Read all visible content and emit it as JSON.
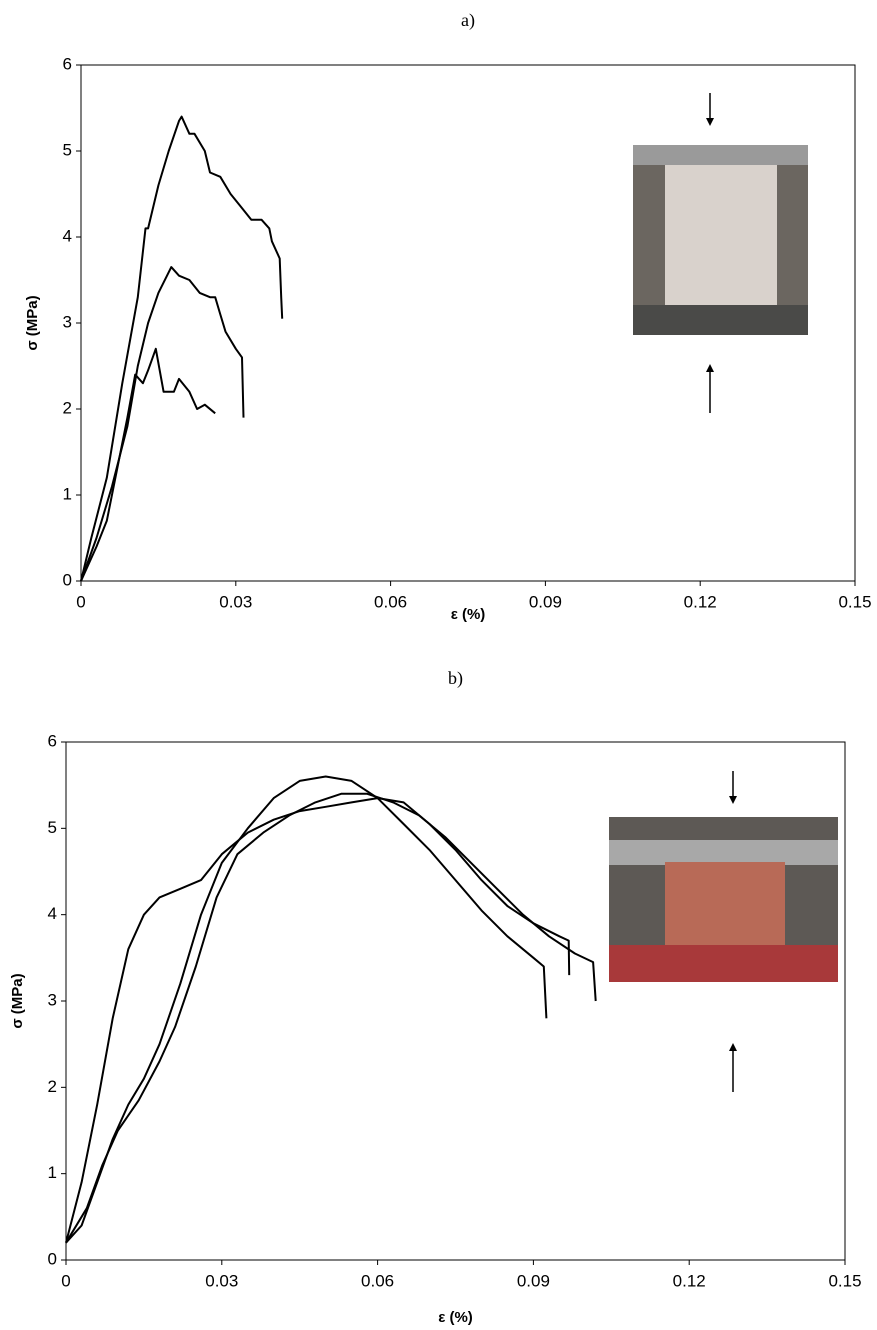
{
  "chart_data": [
    {
      "type": "line",
      "title": "a)",
      "xlabel": "ε (%)",
      "ylabel": "σ (MPa)",
      "xlim": [
        0,
        0.15
      ],
      "ylim": [
        0,
        6
      ],
      "xticks": [
        0,
        0.03,
        0.06,
        0.09,
        0.12,
        0.15
      ],
      "yticks": [
        0,
        1,
        2,
        3,
        4,
        5,
        6
      ],
      "grid": false,
      "series": [
        {
          "color": "#000000",
          "x": [
            0,
            0.002,
            0.005,
            0.008,
            0.011,
            0.0125,
            0.013,
            0.015,
            0.017,
            0.019,
            0.0195,
            0.021,
            0.022,
            0.024,
            0.025,
            0.027,
            0.029,
            0.031,
            0.033,
            0.035,
            0.0365,
            0.037,
            0.0385,
            0.0388,
            0.039
          ],
          "values": [
            0,
            0.5,
            1.2,
            2.3,
            3.3,
            4.1,
            4.1,
            4.6,
            5.0,
            5.35,
            5.4,
            5.2,
            5.2,
            5.0,
            4.75,
            4.7,
            4.5,
            4.35,
            4.2,
            4.2,
            4.1,
            3.95,
            3.75,
            3.3,
            3.05
          ]
        },
        {
          "color": "#000000",
          "x": [
            0,
            0.003,
            0.006,
            0.009,
            0.011,
            0.013,
            0.015,
            0.0175,
            0.019,
            0.021,
            0.023,
            0.025,
            0.026,
            0.027,
            0.028,
            0.03,
            0.0312,
            0.0315
          ],
          "values": [
            0,
            0.5,
            1.1,
            1.8,
            2.5,
            3.0,
            3.35,
            3.65,
            3.55,
            3.5,
            3.35,
            3.3,
            3.3,
            3.1,
            2.9,
            2.7,
            2.6,
            1.9
          ]
        },
        {
          "color": "#000000",
          "x": [
            0,
            0.003,
            0.005,
            0.007,
            0.009,
            0.0105,
            0.012,
            0.013,
            0.0145,
            0.016,
            0.018,
            0.019,
            0.021,
            0.0225,
            0.024,
            0.026
          ],
          "values": [
            0,
            0.4,
            0.7,
            1.3,
            1.9,
            2.4,
            2.3,
            2.45,
            2.7,
            2.2,
            2.2,
            2.35,
            2.2,
            2.0,
            2.05,
            1.95
          ]
        }
      ]
    },
    {
      "type": "line",
      "title": "b)",
      "xlabel": "ε (%)",
      "ylabel": "σ (MPa)",
      "xlim": [
        0,
        0.15
      ],
      "ylim": [
        0,
        6
      ],
      "xticks": [
        0,
        0.03,
        0.06,
        0.09,
        0.12,
        0.15
      ],
      "yticks": [
        0,
        1,
        2,
        3,
        4,
        5,
        6
      ],
      "grid": false,
      "series": [
        {
          "color": "#000000",
          "x": [
            0,
            0.003,
            0.006,
            0.009,
            0.012,
            0.015,
            0.018,
            0.022,
            0.026,
            0.03,
            0.035,
            0.04,
            0.045,
            0.05,
            0.055,
            0.06,
            0.065,
            0.07,
            0.075,
            0.08,
            0.085,
            0.09,
            0.095,
            0.0968,
            0.0969
          ],
          "values": [
            0.2,
            0.9,
            1.8,
            2.8,
            3.6,
            4.0,
            4.2,
            4.3,
            4.4,
            4.7,
            4.95,
            5.1,
            5.2,
            5.25,
            5.3,
            5.35,
            5.3,
            5.05,
            4.75,
            4.4,
            4.1,
            3.9,
            3.75,
            3.7,
            3.3
          ]
        },
        {
          "color": "#000000",
          "x": [
            0,
            0.003,
            0.006,
            0.009,
            0.012,
            0.015,
            0.018,
            0.022,
            0.026,
            0.03,
            0.035,
            0.04,
            0.045,
            0.05,
            0.055,
            0.06,
            0.065,
            0.07,
            0.075,
            0.08,
            0.085,
            0.09,
            0.092,
            0.0925
          ],
          "values": [
            0.2,
            0.4,
            0.9,
            1.4,
            1.8,
            2.1,
            2.5,
            3.2,
            4.0,
            4.6,
            5.0,
            5.35,
            5.55,
            5.6,
            5.55,
            5.35,
            5.05,
            4.75,
            4.4,
            4.05,
            3.75,
            3.5,
            3.4,
            2.8
          ]
        },
        {
          "color": "#000000",
          "x": [
            0,
            0.004,
            0.007,
            0.01,
            0.014,
            0.018,
            0.021,
            0.025,
            0.029,
            0.033,
            0.038,
            0.043,
            0.048,
            0.053,
            0.058,
            0.063,
            0.068,
            0.073,
            0.078,
            0.083,
            0.088,
            0.093,
            0.098,
            0.1015,
            0.102
          ],
          "values": [
            0.2,
            0.6,
            1.1,
            1.5,
            1.85,
            2.3,
            2.7,
            3.4,
            4.2,
            4.7,
            4.95,
            5.15,
            5.3,
            5.4,
            5.4,
            5.3,
            5.15,
            4.9,
            4.6,
            4.3,
            4.0,
            3.75,
            3.55,
            3.45,
            3.0
          ]
        }
      ]
    }
  ]
}
